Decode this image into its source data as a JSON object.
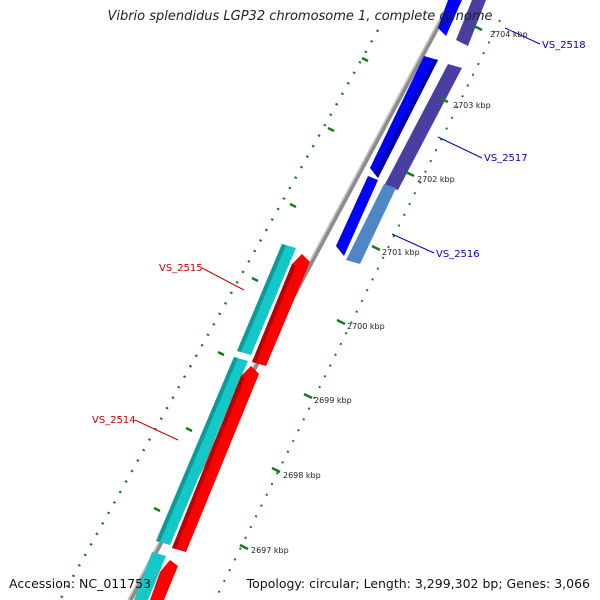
{
  "title": "Vibrio splendidus LGP32 chromosome 1, complete genome",
  "footer": {
    "accession": "Accession: NC_011753",
    "summary": "Topology: circular; Length: 3,299,302 bp; Genes: 3,066"
  },
  "ticks": [
    "2697 kbp",
    "2698 kbp",
    "2699 kbp",
    "2700 kbp",
    "2701 kbp",
    "2702 kbp",
    "2703 kbp",
    "2704 kbp"
  ],
  "genes": [
    {
      "label": "VS_2518",
      "color": "#0000cc"
    },
    {
      "label": "VS_2517",
      "color": "#0000cc"
    },
    {
      "label": "VS_2516",
      "color": "#0000cc"
    },
    {
      "label": "VS_2515",
      "color": "#cc0000"
    },
    {
      "label": "VS_2514",
      "color": "#cc0000"
    }
  ],
  "colors": {
    "backbone": "#8c8c8c",
    "cds_forward": "#ff0000",
    "cds_reverse": "#0000ff",
    "cds_reverse_dark": "#4a3fa0",
    "cds_reverse_steel": "#4f86c6",
    "cog_cyan": "#14c8c8",
    "tick": "#1a7a1a"
  }
}
